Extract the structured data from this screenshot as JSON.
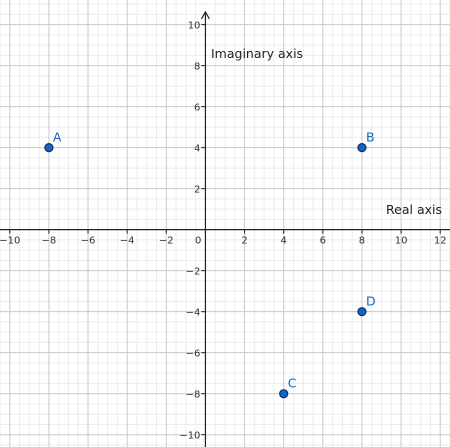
{
  "chart_data": {
    "type": "scatter",
    "title": "",
    "xlabel": "Real axis",
    "ylabel": "Imaginary axis",
    "xlim": [
      -10.5,
      12.5
    ],
    "ylim": [
      -10.6,
      11.2
    ],
    "grid": true,
    "x_ticks": [
      -10,
      -8,
      -6,
      -4,
      -2,
      0,
      2,
      4,
      6,
      8,
      10,
      12
    ],
    "y_ticks": [
      -10,
      -8,
      -6,
      -4,
      -2,
      2,
      4,
      6,
      8,
      10
    ],
    "points": [
      {
        "label": "A",
        "x": -8,
        "y": 4
      },
      {
        "label": "B",
        "x": 8,
        "y": 4
      },
      {
        "label": "C",
        "x": 4,
        "y": -8
      },
      {
        "label": "D",
        "x": 8,
        "y": -4
      }
    ],
    "point_color": "#1565c0",
    "point_edge_color": "#0d2f66"
  }
}
